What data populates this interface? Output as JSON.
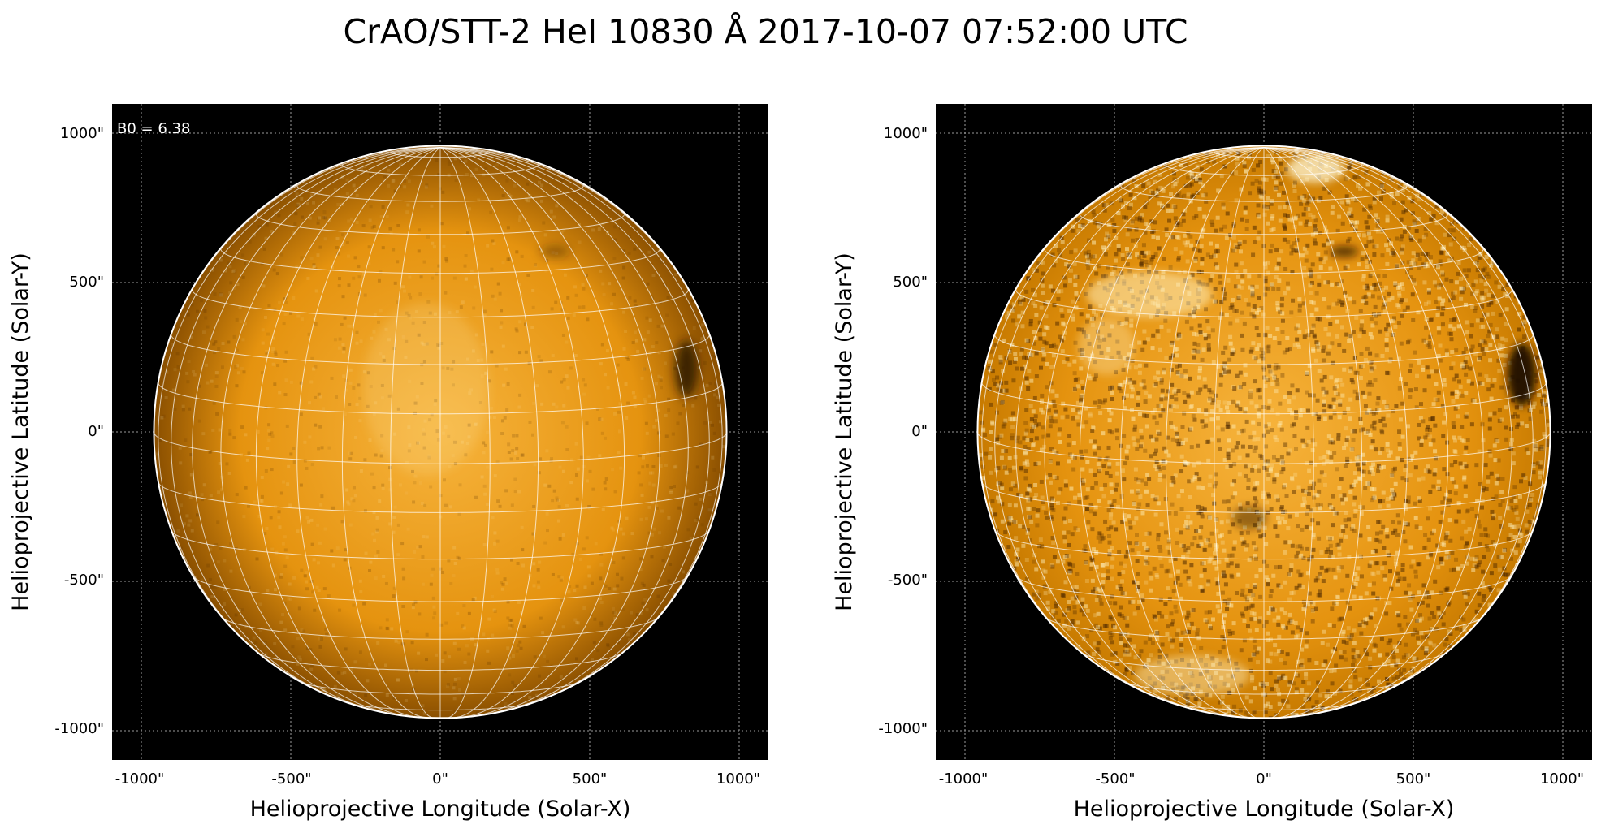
{
  "figure": {
    "title": "CrAO/STT-2 HeI 10830 Å 2017-10-07 07:52:00 UTC"
  },
  "colors": {
    "background": "#ffffff",
    "plot_background": "#000000",
    "disk_bright": "#f7b43d",
    "disk_mid": "#e5930f",
    "disk_dark": "#8a4f00",
    "grid_line": "#ffffff",
    "coordinate_grid": "#9a9a9a"
  },
  "panels": [
    {
      "annotation": "B0 = 6.38",
      "x_ticks": [
        "-1000\"",
        "-500\"",
        "0\"",
        "500\"",
        "1000\""
      ],
      "y_ticks": [
        "1000\"",
        "500\"",
        "0\"",
        "-500\"",
        "-1000\""
      ],
      "xlabel": "Helioprojective Longitude (Solar-X)",
      "ylabel": "Helioprojective Latitude (Solar-Y)"
    },
    {
      "x_ticks": [
        "-1000\"",
        "-500\"",
        "0\"",
        "500\"",
        "1000\""
      ],
      "y_ticks": [
        "1000\"",
        "500\"",
        "0\"",
        "-500\"",
        "-1000\""
      ],
      "xlabel": "Helioprojective Longitude (Solar-X)",
      "ylabel": "Helioprojective Latitude (Solar-Y)"
    }
  ],
  "image_content": {
    "subject": "solar disk in He I 10830 Å",
    "left_panel": "smooth orange disk with a dark filament near the western limb",
    "right_panel": "contrast-enhanced mottled disk with bright northern patches and a dark region near the western limb",
    "heliographic_grid_step_deg": 10,
    "disk_radius_arcsec": 958
  }
}
